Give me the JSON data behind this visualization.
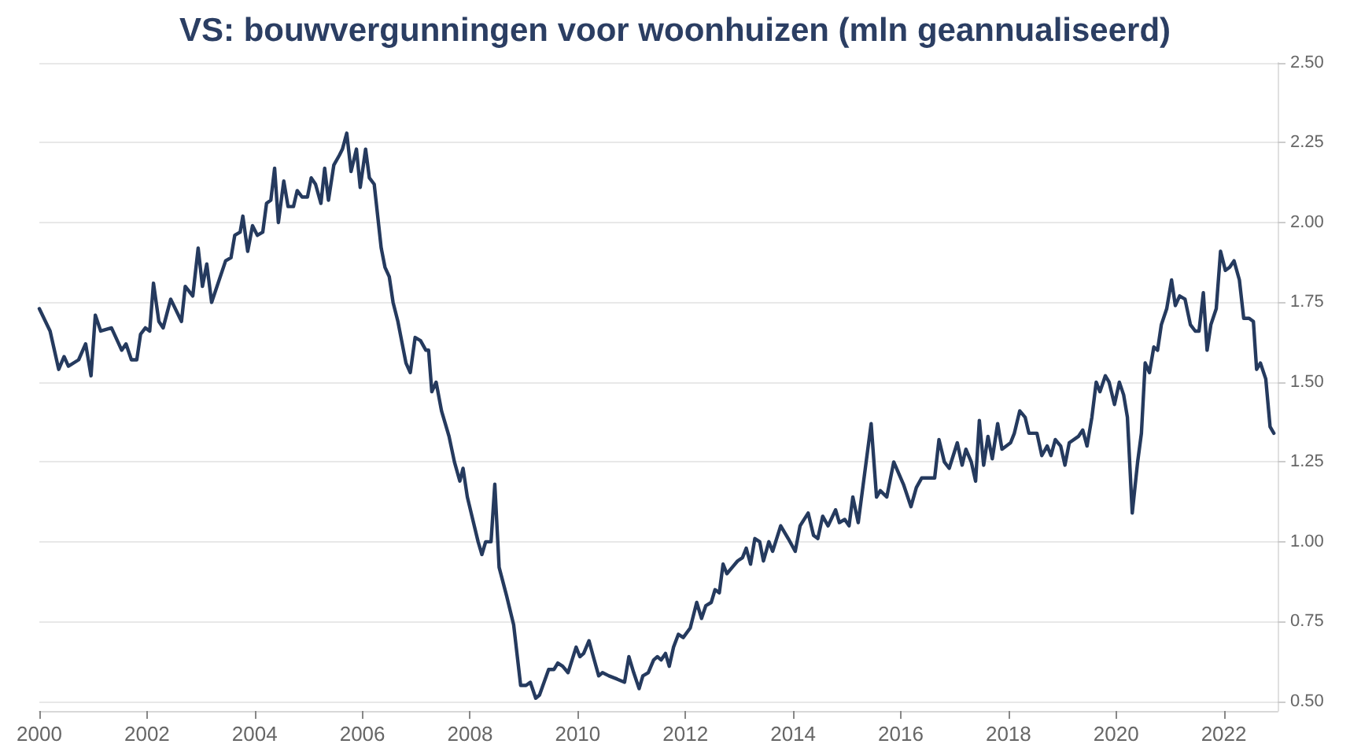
{
  "chart_data": {
    "type": "line",
    "title": "VS: bouwvergunningen voor woonhuizen (mln geannualiseerd)",
    "x": [
      2000.0,
      2000.2,
      2000.36,
      2000.46,
      2000.54,
      2000.73,
      2000.86,
      2000.96,
      2001.04,
      2001.14,
      2001.34,
      2001.53,
      2001.61,
      2001.71,
      2001.81,
      2001.88,
      2001.97,
      2002.05,
      2002.12,
      2002.22,
      2002.3,
      2002.44,
      2002.64,
      2002.71,
      2002.85,
      2002.95,
      2003.03,
      2003.11,
      2003.2,
      2003.46,
      2003.56,
      2003.63,
      2003.73,
      2003.78,
      2003.87,
      2003.96,
      2004.05,
      2004.15,
      2004.22,
      2004.3,
      2004.37,
      2004.44,
      2004.54,
      2004.62,
      2004.72,
      2004.79,
      2004.88,
      2004.98,
      2005.05,
      2005.13,
      2005.23,
      2005.3,
      2005.37,
      2005.47,
      2005.57,
      2005.63,
      2005.71,
      2005.79,
      2005.89,
      2005.96,
      2006.06,
      2006.13,
      2006.22,
      2006.35,
      2006.42,
      2006.5,
      2006.57,
      2006.66,
      2006.81,
      2006.89,
      2006.98,
      2007.08,
      2007.18,
      2007.23,
      2007.29,
      2007.37,
      2007.47,
      2007.61,
      2007.71,
      2007.81,
      2007.87,
      2007.95,
      2008.05,
      2008.15,
      2008.22,
      2008.29,
      2008.39,
      2008.46,
      2008.54,
      2008.68,
      2008.81,
      2008.94,
      2009.04,
      2009.12,
      2009.22,
      2009.29,
      2009.46,
      2009.56,
      2009.63,
      2009.72,
      2009.82,
      2009.97,
      2010.04,
      2010.11,
      2010.21,
      2010.29,
      2010.39,
      2010.46,
      2010.58,
      2010.73,
      2010.87,
      2010.95,
      2011.04,
      2011.14,
      2011.21,
      2011.31,
      2011.41,
      2011.48,
      2011.55,
      2011.63,
      2011.7,
      2011.78,
      2011.87,
      2011.96,
      2012.09,
      2012.21,
      2012.3,
      2012.38,
      2012.48,
      2012.55,
      2012.63,
      2012.7,
      2012.77,
      2012.87,
      2012.97,
      2013.06,
      2013.13,
      2013.21,
      2013.29,
      2013.38,
      2013.45,
      2013.55,
      2013.62,
      2013.77,
      2013.91,
      2014.04,
      2014.13,
      2014.28,
      2014.38,
      2014.46,
      2014.55,
      2014.65,
      2014.79,
      2014.86,
      2014.96,
      2015.04,
      2015.11,
      2015.21,
      2015.45,
      2015.55,
      2015.62,
      2015.74,
      2015.87,
      2016.05,
      2016.19,
      2016.29,
      2016.39,
      2016.55,
      2016.63,
      2016.71,
      2016.81,
      2016.9,
      2017.05,
      2017.14,
      2017.21,
      2017.31,
      2017.39,
      2017.46,
      2017.54,
      2017.62,
      2017.7,
      2017.8,
      2017.88,
      2018.04,
      2018.11,
      2018.21,
      2018.31,
      2018.38,
      2018.53,
      2018.62,
      2018.72,
      2018.79,
      2018.87,
      2018.97,
      2019.05,
      2019.13,
      2019.3,
      2019.38,
      2019.46,
      2019.55,
      2019.63,
      2019.7,
      2019.8,
      2019.87,
      2019.97,
      2020.06,
      2020.14,
      2020.21,
      2020.3,
      2020.4,
      2020.47,
      2020.54,
      2020.62,
      2020.7,
      2020.77,
      2020.84,
      2020.94,
      2021.03,
      2021.1,
      2021.18,
      2021.28,
      2021.38,
      2021.47,
      2021.54,
      2021.62,
      2021.69,
      2021.76,
      2021.86,
      2021.94,
      2022.03,
      2022.11,
      2022.19,
      2022.29,
      2022.37,
      2022.47,
      2022.55,
      2022.61,
      2022.68,
      2022.78,
      2022.86,
      2022.93
    ],
    "series": [
      {
        "color": "#253a5e",
        "values": [
          1.73,
          1.66,
          1.54,
          1.58,
          1.55,
          1.57,
          1.62,
          1.52,
          1.71,
          1.66,
          1.67,
          1.6,
          1.62,
          1.57,
          1.57,
          1.65,
          1.67,
          1.66,
          1.81,
          1.69,
          1.67,
          1.76,
          1.69,
          1.8,
          1.77,
          1.92,
          1.8,
          1.87,
          1.75,
          1.88,
          1.89,
          1.96,
          1.97,
          2.02,
          1.91,
          1.99,
          1.96,
          1.97,
          2.06,
          2.07,
          2.17,
          2.0,
          2.13,
          2.05,
          2.05,
          2.1,
          2.08,
          2.08,
          2.14,
          2.12,
          2.06,
          2.17,
          2.07,
          2.18,
          2.21,
          2.23,
          2.28,
          2.16,
          2.23,
          2.11,
          2.23,
          2.14,
          2.12,
          1.92,
          1.86,
          1.83,
          1.75,
          1.69,
          1.56,
          1.53,
          1.64,
          1.63,
          1.6,
          1.6,
          1.47,
          1.5,
          1.41,
          1.33,
          1.25,
          1.19,
          1.23,
          1.14,
          1.07,
          1.0,
          0.96,
          1.0,
          1.0,
          1.18,
          0.92,
          0.83,
          0.74,
          0.55,
          0.55,
          0.56,
          0.51,
          0.52,
          0.6,
          0.6,
          0.62,
          0.61,
          0.59,
          0.67,
          0.64,
          0.65,
          0.69,
          0.64,
          0.58,
          0.59,
          0.58,
          0.57,
          0.56,
          0.64,
          0.59,
          0.54,
          0.58,
          0.59,
          0.63,
          0.64,
          0.63,
          0.65,
          0.61,
          0.67,
          0.71,
          0.7,
          0.73,
          0.81,
          0.76,
          0.8,
          0.81,
          0.85,
          0.84,
          0.93,
          0.9,
          0.92,
          0.94,
          0.95,
          0.98,
          0.93,
          1.01,
          1.0,
          0.94,
          1.0,
          0.97,
          1.05,
          1.01,
          0.97,
          1.05,
          1.09,
          1.02,
          1.01,
          1.08,
          1.05,
          1.1,
          1.06,
          1.07,
          1.05,
          1.14,
          1.06,
          1.37,
          1.14,
          1.16,
          1.14,
          1.25,
          1.18,
          1.11,
          1.17,
          1.2,
          1.2,
          1.2,
          1.32,
          1.25,
          1.23,
          1.31,
          1.24,
          1.29,
          1.25,
          1.19,
          1.38,
          1.24,
          1.33,
          1.26,
          1.37,
          1.29,
          1.31,
          1.34,
          1.41,
          1.39,
          1.34,
          1.34,
          1.27,
          1.3,
          1.27,
          1.32,
          1.3,
          1.24,
          1.31,
          1.33,
          1.35,
          1.3,
          1.39,
          1.5,
          1.47,
          1.52,
          1.5,
          1.43,
          1.5,
          1.46,
          1.39,
          1.09,
          1.25,
          1.34,
          1.56,
          1.53,
          1.61,
          1.6,
          1.68,
          1.73,
          1.82,
          1.74,
          1.77,
          1.76,
          1.68,
          1.66,
          1.66,
          1.78,
          1.6,
          1.68,
          1.73,
          1.91,
          1.85,
          1.86,
          1.88,
          1.82,
          1.7,
          1.7,
          1.69,
          1.54,
          1.56,
          1.51,
          1.36,
          1.34
        ]
      }
    ],
    "xlim": [
      2000,
      2023
    ],
    "xticks": [
      2000,
      2002,
      2004,
      2006,
      2008,
      2010,
      2012,
      2014,
      2016,
      2018,
      2020,
      2022
    ],
    "ylim": [
      0.47,
      2.5
    ],
    "yticks": [
      {
        "value": 0.5,
        "label": "0.50"
      },
      {
        "value": 0.75,
        "label": "0.75"
      },
      {
        "value": 1,
        "label": "1.00"
      },
      {
        "value": 1.25,
        "label": "1.25"
      },
      {
        "value": 1.5,
        "label": "1.50"
      },
      {
        "value": 1.75,
        "label": "1.75"
      },
      {
        "value": 2,
        "label": "2.00"
      },
      {
        "value": 2.25,
        "label": "2.25"
      },
      {
        "value": 2.5,
        "label": "2.50"
      }
    ],
    "grid": "y",
    "marker": "none",
    "line_style": "solid"
  }
}
